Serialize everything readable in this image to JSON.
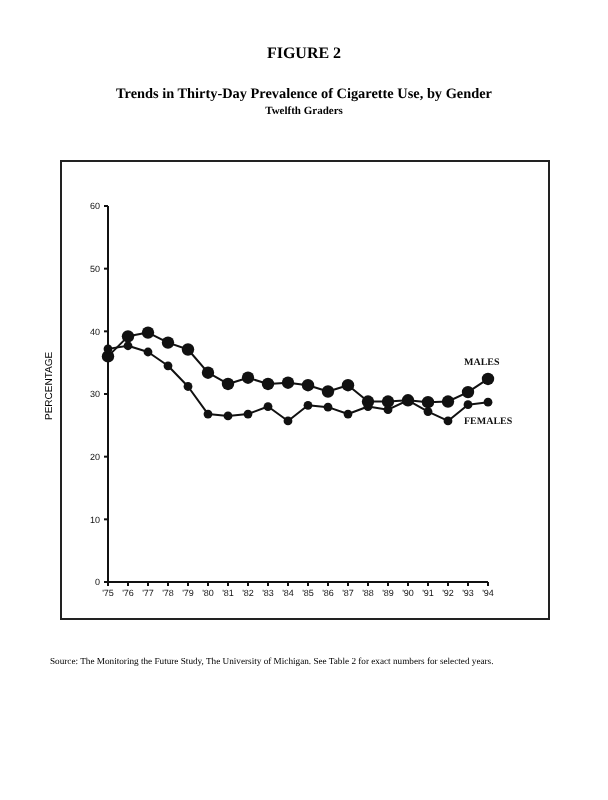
{
  "chart_data": {
    "type": "line",
    "title": "Trends in Thirty-Day Prevalence of Cigarette Use, by Gender",
    "subtitle": "Twelfth Graders",
    "annotations": [
      "FIGURE 2",
      "Source: The Monitoring the Future Study, The University of Michigan.  See Table 2 for exact numbers for selected years."
    ],
    "ylabel": "PERCENTAGE",
    "categories": [
      "'75",
      "'76",
      "'77",
      "'78",
      "'79",
      "'80",
      "'81",
      "'82",
      "'83",
      "'84",
      "'85",
      "'86",
      "'87",
      "'88",
      "'89",
      "'90",
      "'91",
      "'92",
      "'93",
      "'94"
    ],
    "series": [
      {
        "name": "MALES",
        "color": "#111111",
        "values": [
          36,
          39.2,
          39.8,
          38.2,
          37.1,
          33.4,
          31.6,
          32.6,
          31.6,
          31.8,
          31.4,
          30.4,
          31.4,
          28.8,
          28.8,
          29,
          28.7,
          28.8,
          30.3,
          32.4
        ]
      },
      {
        "name": "FEMALES",
        "color": "#111111",
        "values": [
          37.2,
          37.7,
          36.7,
          34.5,
          31.2,
          26.8,
          26.5,
          26.8,
          28,
          25.7,
          28.2,
          27.9,
          26.8,
          28,
          27.5,
          29,
          27.2,
          25.7,
          28.3,
          28.7
        ]
      }
    ],
    "ylim": [
      0,
      60
    ],
    "yticks": [
      0,
      10,
      20,
      30,
      40,
      50,
      60
    ],
    "grid": false,
    "legend": false,
    "marker": "circle",
    "line_style": "solid"
  }
}
